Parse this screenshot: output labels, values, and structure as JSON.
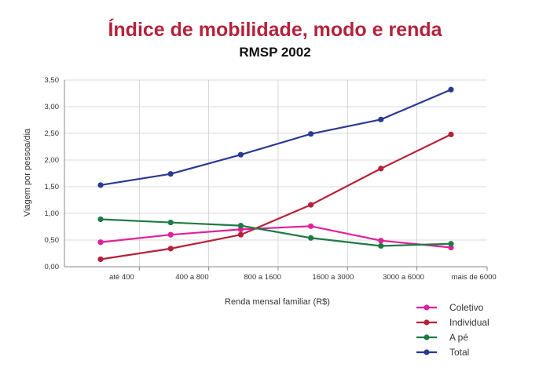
{
  "colors": {
    "title": "#b5223a",
    "grid": "#cccccc",
    "axis": "#888888"
  },
  "chart_data": {
    "type": "line",
    "title": "Índice de mobilidade, modo e renda",
    "subtitle": "RMSP 2002",
    "xlabel": "Renda mensal familiar (R$)",
    "ylabel": "Viagem por pessoa/dia",
    "categories": [
      "até 400",
      "400 a 800",
      "800 a 1600",
      "1600 a 3000",
      "3000 a 6000",
      "mais de 6000"
    ],
    "ylim": [
      0,
      3.5
    ],
    "yticks": [
      "0,00",
      "0,50",
      "1,00",
      "1,50",
      "2,00",
      "2,50",
      "3,00",
      "3,50"
    ],
    "grid": true,
    "legend_position": "bottom-right",
    "series": [
      {
        "name": "Coletivo",
        "color": "#e0209a",
        "values": [
          0.46,
          0.6,
          0.7,
          0.76,
          0.49,
          0.36
        ]
      },
      {
        "name": "Individual",
        "color": "#b5223a",
        "values": [
          0.14,
          0.34,
          0.6,
          1.16,
          1.84,
          2.48
        ]
      },
      {
        "name": "A pé",
        "color": "#1f7a45",
        "values": [
          0.89,
          0.83,
          0.77,
          0.54,
          0.39,
          0.43
        ]
      },
      {
        "name": "Total",
        "color": "#2b3990",
        "values": [
          1.53,
          1.74,
          2.1,
          2.49,
          2.76,
          3.32
        ]
      }
    ]
  }
}
